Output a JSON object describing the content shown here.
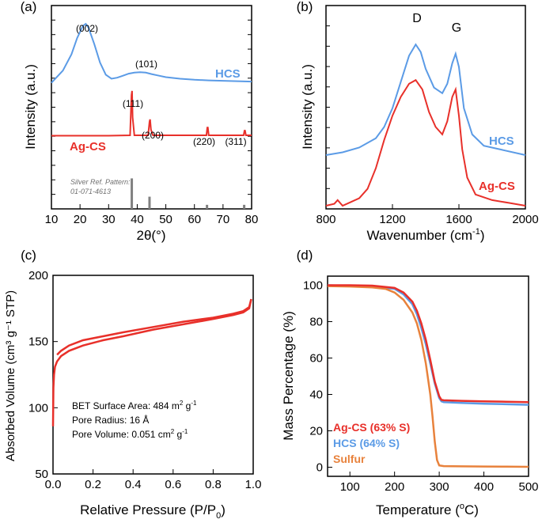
{
  "chart_data": [
    {
      "panel": "(a)",
      "type": "line",
      "xlabel_html": "2θ(°)",
      "ylabel": "Intensity (a.u.)",
      "xlim": [
        10,
        80
      ],
      "xticks": [
        10,
        20,
        30,
        40,
        50,
        60,
        70,
        80
      ],
      "series": [
        {
          "name": "HCS",
          "color": "#5B9BE6",
          "x": [
            10,
            14,
            17,
            19,
            21,
            22,
            23,
            25,
            27,
            29,
            31,
            33,
            35,
            37,
            39,
            41,
            43,
            45,
            47,
            50,
            55,
            60,
            65,
            70,
            75,
            80
          ],
          "y": [
            0.62,
            0.68,
            0.76,
            0.84,
            0.9,
            0.91,
            0.89,
            0.81,
            0.72,
            0.66,
            0.64,
            0.645,
            0.655,
            0.665,
            0.67,
            0.672,
            0.67,
            0.663,
            0.657,
            0.648,
            0.64,
            0.635,
            0.632,
            0.63,
            0.628,
            0.626
          ]
        },
        {
          "name": "Ag-CS",
          "color": "#E8302A",
          "x": [
            10,
            20,
            30,
            37.5,
            38.0,
            38.2,
            38.4,
            39.0,
            43.8,
            44.3,
            44.5,
            44.8,
            45.5,
            64.2,
            64.5,
            64.7,
            65.0,
            77.2,
            77.5,
            77.7,
            78.0,
            80
          ],
          "y": [
            0.36,
            0.36,
            0.36,
            0.362,
            0.56,
            0.58,
            0.45,
            0.362,
            0.362,
            0.43,
            0.44,
            0.39,
            0.362,
            0.362,
            0.4,
            0.4,
            0.362,
            0.362,
            0.385,
            0.385,
            0.362,
            0.362
          ]
        },
        {
          "name": "Silver Ref. Pattern: 01-071-4613",
          "type": "stick",
          "color": "#808080",
          "x": [
            38.1,
            44.3,
            64.4,
            77.4
          ],
          "y": [
            0.15,
            0.06,
            0.02,
            0.02
          ]
        }
      ],
      "annotations": [
        "(002)",
        "(101)",
        "(111)",
        "(200)",
        "(220)",
        "(311)"
      ],
      "labels": {
        "hcs": "HCS",
        "agcs": "Ag-CS",
        "ref_line1": "Silver Ref. Pattern:",
        "ref_line2": "01-071-4613"
      }
    },
    {
      "panel": "(b)",
      "type": "line",
      "xlabel": "Wavenumber (cm",
      "xlabel_sup": "-1",
      "xlabel_end": ")",
      "ylabel": "Intensity (a.u.)",
      "xlim": [
        800,
        2000
      ],
      "xticks": [
        800,
        1200,
        1600,
        2000
      ],
      "series": [
        {
          "name": "HCS",
          "color": "#5B9BE6",
          "x": [
            800,
            900,
            1000,
            1100,
            1150,
            1200,
            1250,
            1300,
            1340,
            1370,
            1400,
            1450,
            1500,
            1530,
            1560,
            1580,
            1600,
            1630,
            1680,
            1750,
            1850,
            2000
          ],
          "y": [
            0.27,
            0.285,
            0.31,
            0.36,
            0.42,
            0.52,
            0.66,
            0.8,
            0.86,
            0.82,
            0.73,
            0.63,
            0.6,
            0.65,
            0.76,
            0.81,
            0.74,
            0.52,
            0.38,
            0.32,
            0.3,
            0.27
          ]
        },
        {
          "name": "Ag-CS",
          "color": "#E8302A",
          "x": [
            800,
            850,
            870,
            900,
            950,
            1000,
            1050,
            1100,
            1150,
            1200,
            1250,
            1300,
            1340,
            1380,
            1420,
            1460,
            1500,
            1530,
            1560,
            1580,
            1600,
            1620,
            1650,
            1700,
            1800,
            1900,
            2000
          ],
          "y": [
            0.0,
            0.01,
            0.03,
            0.0,
            0.02,
            0.04,
            0.09,
            0.2,
            0.35,
            0.48,
            0.58,
            0.65,
            0.67,
            0.62,
            0.5,
            0.42,
            0.38,
            0.45,
            0.58,
            0.62,
            0.48,
            0.3,
            0.15,
            0.06,
            0.03,
            0.015,
            0.0
          ]
        }
      ],
      "annotations": [
        "D",
        "G"
      ],
      "labels": {
        "hcs": "HCS",
        "agcs": "Ag-CS"
      }
    },
    {
      "panel": "(c)",
      "type": "line",
      "xlabel": "Relative Pressure (P/P",
      "xlabel_sub": "0",
      "xlabel_end": ")",
      "ylabel_html": "Absorbed Volume (cm³ g⁻¹ STP)",
      "xlim": [
        0,
        1.0
      ],
      "ylim": [
        50,
        200
      ],
      "xticks": [
        0.0,
        0.2,
        0.4,
        0.6,
        0.8,
        1.0
      ],
      "xtick_labels": [
        "0.0",
        "0.2",
        "0.4",
        "0.6",
        "0.8",
        "1.0"
      ],
      "yticks": [
        50,
        100,
        150,
        200
      ],
      "series": [
        {
          "name": "adsorption",
          "color": "#E8302A",
          "x": [
            0.0,
            0.002,
            0.005,
            0.01,
            0.02,
            0.04,
            0.08,
            0.15,
            0.25,
            0.35,
            0.5,
            0.65,
            0.8,
            0.9,
            0.95,
            0.98,
            0.99
          ],
          "y": [
            86,
            115,
            125,
            131,
            135,
            139,
            143,
            147,
            151,
            154,
            159,
            163,
            167,
            170,
            172,
            175,
            182
          ]
        },
        {
          "name": "desorption",
          "color": "#E8302A",
          "x": [
            0.99,
            0.98,
            0.95,
            0.9,
            0.8,
            0.65,
            0.5,
            0.35,
            0.25,
            0.15,
            0.08,
            0.04,
            0.02
          ],
          "y": [
            182,
            176,
            173,
            171,
            168,
            165,
            161,
            157,
            154,
            151,
            147,
            143,
            140
          ]
        }
      ],
      "annotation_lines": [
        {
          "prefix": "BET Surface Area: 484 m",
          "sup": "2",
          "mid": " g",
          "sup2": "-1"
        },
        {
          "prefix": "Pore Radius: 16 Å",
          "sup": "",
          "mid": "",
          "sup2": ""
        },
        {
          "prefix": "Pore Volume: 0.051 cm",
          "sup": "2",
          "mid": " g",
          "sup2": "-1"
        }
      ]
    },
    {
      "panel": "(d)",
      "type": "line",
      "xlabel": "Temperature (",
      "xlabel_sup": "o",
      "xlabel_end": "C)",
      "ylabel": "Mass Percentage (%)",
      "xlim": [
        50,
        500
      ],
      "ylim": [
        -5,
        105
      ],
      "xticks": [
        100,
        200,
        300,
        400,
        500
      ],
      "yticks": [
        0,
        20,
        40,
        60,
        80,
        100
      ],
      "series": [
        {
          "name": "Ag-CS (63% S)",
          "color": "#E8302A",
          "x": [
            50,
            100,
            150,
            200,
            220,
            240,
            250,
            260,
            270,
            280,
            290,
            300,
            305,
            310,
            350,
            400,
            450,
            500
          ],
          "y": [
            100,
            100,
            99.8,
            98.5,
            96,
            91,
            86,
            79,
            70,
            59,
            47,
            39,
            37,
            36.8,
            36.5,
            36.2,
            36,
            35.8
          ]
        },
        {
          "name": "HCS (64% S)",
          "color": "#5B9BE6",
          "x": [
            50,
            100,
            150,
            200,
            220,
            240,
            250,
            260,
            270,
            280,
            290,
            300,
            305,
            310,
            350,
            400,
            450,
            500
          ],
          "y": [
            100,
            99.7,
            99.4,
            98,
            95,
            89.5,
            84,
            76.5,
            67.5,
            57,
            46,
            38,
            36.2,
            35.8,
            35.3,
            34.9,
            34.6,
            34.3
          ]
        },
        {
          "name": "Sulfur",
          "color": "#E8823C",
          "x": [
            50,
            100,
            150,
            180,
            200,
            220,
            240,
            250,
            260,
            270,
            280,
            285,
            290,
            295,
            300,
            310,
            350,
            400,
            450,
            500
          ],
          "y": [
            99.5,
            99.3,
            98.8,
            98,
            96,
            92,
            85,
            79,
            70,
            57,
            40,
            28,
            14,
            4,
            1,
            0.6,
            0.5,
            0.4,
            0.3,
            0.2
          ]
        }
      ]
    }
  ]
}
